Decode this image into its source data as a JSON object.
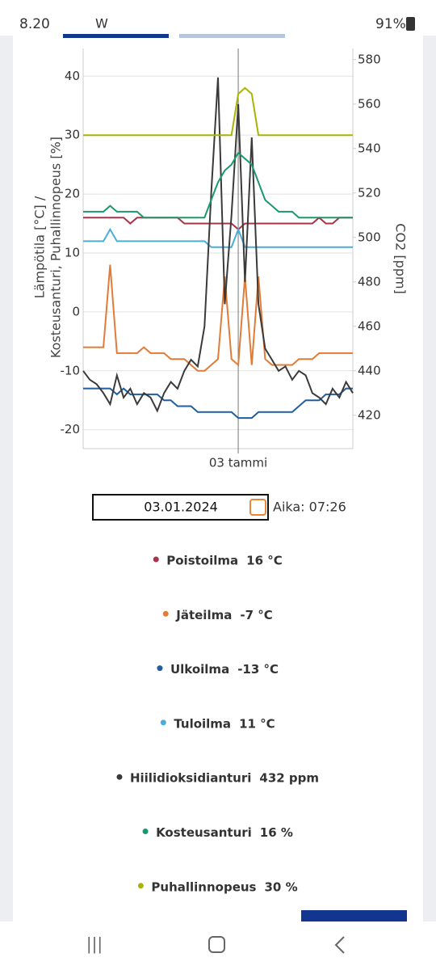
{
  "status_bar": {
    "time": "8.20",
    "app": "W",
    "battery": "91%"
  },
  "chart_data": {
    "type": "line",
    "categories": [
      null,
      null,
      null,
      null,
      null,
      null,
      null,
      null,
      null,
      null,
      null,
      null,
      null,
      null,
      null,
      null,
      null,
      null,
      null,
      null,
      null,
      null,
      null,
      "03 tammi",
      null,
      null,
      null,
      null,
      null,
      null,
      null,
      null,
      null,
      null,
      null,
      null,
      null,
      null,
      null,
      null,
      null
    ],
    "y_label": "Lämpötila [°C] / Kosteusanturi, Puhallinnopeus [%]",
    "y2_label": "CO2 [ppm]",
    "ylim": [
      -23.2,
      44.7
    ],
    "yticks": [
      -20,
      -10,
      0,
      10,
      20,
      30,
      40
    ],
    "y2lim": [
      405,
      585
    ],
    "y2ticks": [
      420,
      440,
      460,
      480,
      500,
      520,
      540,
      560,
      580
    ],
    "grid": true,
    "series": [
      {
        "name": "Poistoilma",
        "color": "#a8344a",
        "values": [
          16,
          16,
          16,
          16,
          16,
          16,
          16,
          15,
          16,
          16,
          16,
          16,
          16,
          16,
          16,
          15,
          15,
          15,
          15,
          15,
          15,
          15,
          15,
          14,
          15,
          15,
          15,
          15,
          15,
          15,
          15,
          15,
          15,
          15,
          15,
          16,
          15,
          15,
          16,
          16,
          16
        ]
      },
      {
        "name": "Jäteilma",
        "color": "#e07b39",
        "values": [
          -6,
          -6,
          -6,
          -6,
          8,
          -7,
          -7,
          -7,
          -7,
          -6,
          -7,
          -7,
          -7,
          -8,
          -8,
          -8,
          -9,
          -10,
          -10,
          -9,
          -8,
          6,
          -8,
          -9,
          6,
          -9,
          6,
          -8,
          -9,
          -9,
          -9,
          -9,
          -8,
          -8,
          -8,
          -7,
          -7,
          -7,
          -7,
          -7,
          -7
        ]
      },
      {
        "name": "Ulkoilma",
        "color": "#1f5f9f",
        "values": [
          -13,
          -13,
          -13,
          -13,
          -13,
          -14,
          -13,
          -14,
          -14,
          -14,
          -14,
          -14,
          -15,
          -15,
          -16,
          -16,
          -16,
          -17,
          -17,
          -17,
          -17,
          -17,
          -17,
          -18,
          -18,
          -18,
          -17,
          -17,
          -17,
          -17,
          -17,
          -17,
          -16,
          -15,
          -15,
          -15,
          -14,
          -14,
          -14,
          -13,
          -13
        ]
      },
      {
        "name": "Tuloilma",
        "color": "#4aaed8",
        "values": [
          12,
          12,
          12,
          12,
          14,
          12,
          12,
          12,
          12,
          12,
          12,
          12,
          12,
          12,
          12,
          12,
          12,
          12,
          12,
          11,
          11,
          11,
          11,
          14,
          11,
          11,
          11,
          11,
          11,
          11,
          11,
          11,
          11,
          11,
          11,
          11,
          11,
          11,
          11,
          11,
          11
        ]
      },
      {
        "name": "Hiilidioksidianturi",
        "color": "#3a3a3a",
        "axis": "y2",
        "values": [
          440,
          436,
          434,
          430,
          425,
          438,
          428,
          432,
          425,
          430,
          428,
          422,
          430,
          435,
          432,
          440,
          445,
          442,
          460,
          520,
          572,
          470,
          510,
          560,
          480,
          545,
          470,
          450,
          445,
          440,
          442,
          436,
          440,
          438,
          430,
          428,
          425,
          432,
          428,
          435,
          430
        ]
      },
      {
        "name": "Kosteusanturi",
        "color": "#1a9a6a",
        "values": [
          17,
          17,
          17,
          17,
          18,
          17,
          17,
          17,
          17,
          16,
          16,
          16,
          16,
          16,
          16,
          16,
          16,
          16,
          16,
          19,
          22,
          24,
          25,
          27,
          26,
          25,
          22,
          19,
          18,
          17,
          17,
          17,
          16,
          16,
          16,
          16,
          16,
          16,
          16,
          16,
          16
        ]
      },
      {
        "name": "Puhallinnopeus",
        "color": "#a8b400",
        "values": [
          30,
          30,
          30,
          30,
          30,
          30,
          30,
          30,
          30,
          30,
          30,
          30,
          30,
          30,
          30,
          30,
          30,
          30,
          30,
          30,
          30,
          30,
          30,
          37,
          38,
          37,
          30,
          30,
          30,
          30,
          30,
          30,
          30,
          30,
          30,
          30,
          30,
          30,
          30,
          30,
          30
        ]
      }
    ]
  },
  "date": "03.01.2024",
  "time_label": "Aika: 07:26",
  "readings": [
    "16 °C",
    "-7 °C",
    "-13 °C",
    "11 °C",
    "432 ppm",
    "16 %",
    "30 %"
  ]
}
